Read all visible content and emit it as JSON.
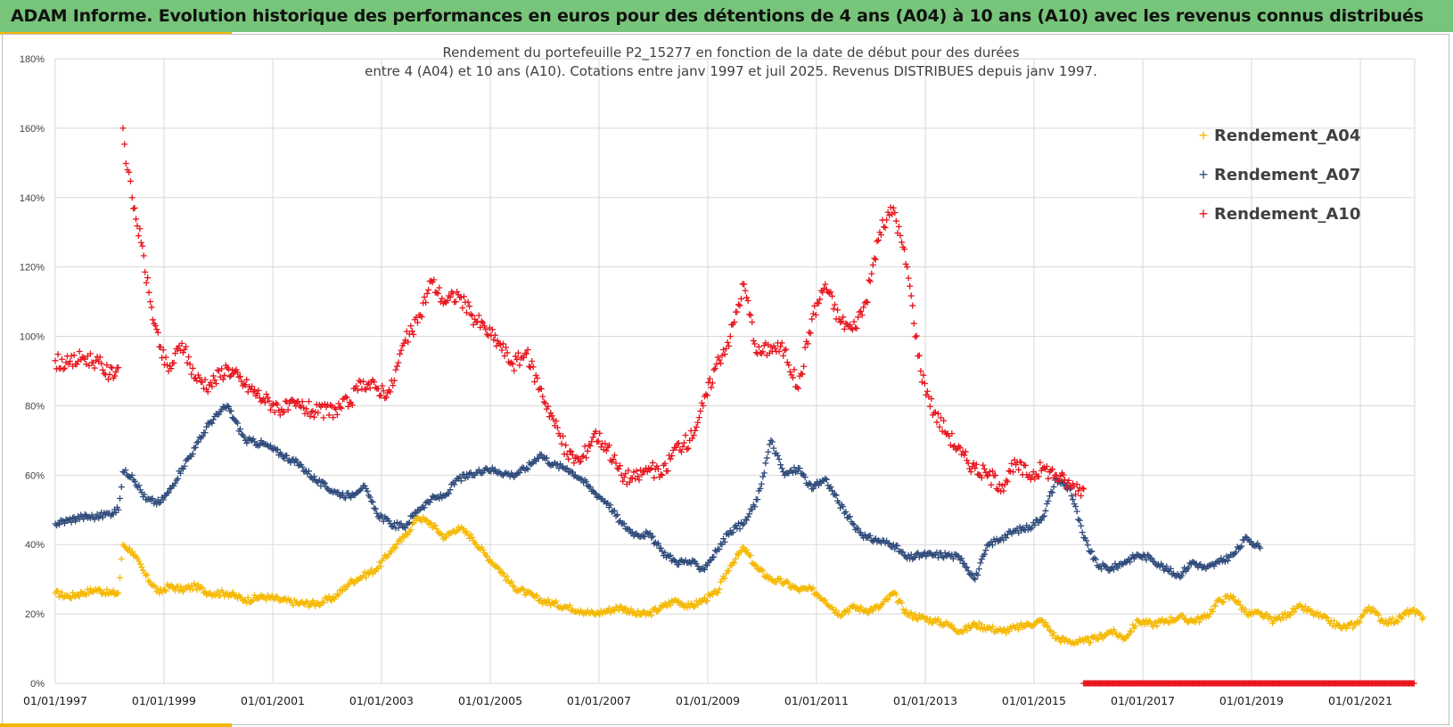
{
  "banner": {
    "title": "ADAM Informe. Evolution historique des performances en euros pour des détentions de 4 ans (A04) à 10 ans (A10) avec les revenus connus distribués"
  },
  "colors": {
    "banner_bg": "#77c57a",
    "accent": "#f2b705"
  },
  "chart_data": {
    "type": "scatter",
    "marker": "plus",
    "title_lines": [
      "Rendement du portefeuille P2_15277 en fonction de la date de début pour des durées",
      "entre 4 (A04) et 10 ans (A10). Cotations entre janv 1997 et juil 2025. Revenus DISTRIBUES depuis janv 1997."
    ],
    "x_range": [
      "1997-01-01",
      "2022-01-01"
    ],
    "y_range": [
      0,
      1.8
    ],
    "y_ticks": [
      "0%",
      "20%",
      "40%",
      "60%",
      "80%",
      "100%",
      "120%",
      "140%",
      "160%",
      "180%"
    ],
    "x_ticks": [
      "01/01/1997",
      "01/01/1999",
      "01/01/2001",
      "01/01/2003",
      "01/01/2005",
      "01/01/2007",
      "01/01/2009",
      "01/01/2011",
      "01/01/2013",
      "01/01/2015",
      "01/01/2017",
      "01/01/2019",
      "01/01/2021"
    ],
    "grid": true,
    "legend_position": "top-right",
    "series": [
      {
        "name": "Rendement_A04",
        "color": "#f5b800",
        "points": [
          [
            "1997-01-01",
            0.26
          ],
          [
            "1997-04-01",
            0.25
          ],
          [
            "1997-07-01",
            0.26
          ],
          [
            "1997-10-01",
            0.27
          ],
          [
            "1998-01-01",
            0.26
          ],
          [
            "1998-03-01",
            0.26
          ],
          [
            "1998-04-01",
            0.4
          ],
          [
            "1998-06-01",
            0.38
          ],
          [
            "1998-09-01",
            0.31
          ],
          [
            "1998-12-01",
            0.26
          ],
          [
            "1999-02-01",
            0.28
          ],
          [
            "1999-05-01",
            0.27
          ],
          [
            "1999-08-01",
            0.28
          ],
          [
            "1999-11-01",
            0.26
          ],
          [
            "2000-03-01",
            0.26
          ],
          [
            "2000-07-01",
            0.24
          ],
          [
            "2000-11-01",
            0.25
          ],
          [
            "2001-03-01",
            0.24
          ],
          [
            "2001-07-01",
            0.23
          ],
          [
            "2001-11-01",
            0.23
          ],
          [
            "2002-03-01",
            0.25
          ],
          [
            "2002-06-01",
            0.29
          ],
          [
            "2002-09-01",
            0.31
          ],
          [
            "2002-12-01",
            0.33
          ],
          [
            "2003-03-01",
            0.38
          ],
          [
            "2003-06-01",
            0.42
          ],
          [
            "2003-09-01",
            0.48
          ],
          [
            "2003-12-01",
            0.46
          ],
          [
            "2004-03-01",
            0.42
          ],
          [
            "2004-06-01",
            0.45
          ],
          [
            "2004-09-01",
            0.42
          ],
          [
            "2004-12-01",
            0.37
          ],
          [
            "2005-03-01",
            0.33
          ],
          [
            "2005-06-01",
            0.28
          ],
          [
            "2005-09-01",
            0.26
          ],
          [
            "2005-12-01",
            0.24
          ],
          [
            "2006-03-01",
            0.23
          ],
          [
            "2006-06-01",
            0.22
          ],
          [
            "2006-09-01",
            0.21
          ],
          [
            "2006-12-01",
            0.2
          ],
          [
            "2007-03-01",
            0.21
          ],
          [
            "2007-06-01",
            0.22
          ],
          [
            "2007-09-01",
            0.2
          ],
          [
            "2007-12-01",
            0.2
          ],
          [
            "2008-03-01",
            0.22
          ],
          [
            "2008-06-01",
            0.24
          ],
          [
            "2008-09-01",
            0.22
          ],
          [
            "2008-12-01",
            0.24
          ],
          [
            "2009-03-01",
            0.26
          ],
          [
            "2009-06-01",
            0.34
          ],
          [
            "2009-09-01",
            0.39
          ],
          [
            "2009-12-01",
            0.33
          ],
          [
            "2010-03-01",
            0.3
          ],
          [
            "2010-06-01",
            0.29
          ],
          [
            "2010-09-01",
            0.27
          ],
          [
            "2010-12-01",
            0.27
          ],
          [
            "2011-03-01",
            0.24
          ],
          [
            "2011-06-01",
            0.2
          ],
          [
            "2011-09-01",
            0.22
          ],
          [
            "2011-12-01",
            0.21
          ],
          [
            "2012-03-01",
            0.22
          ],
          [
            "2012-06-01",
            0.26
          ],
          [
            "2012-09-01",
            0.2
          ],
          [
            "2012-12-01",
            0.19
          ],
          [
            "2013-03-01",
            0.18
          ],
          [
            "2013-06-01",
            0.17
          ],
          [
            "2013-09-01",
            0.15
          ],
          [
            "2013-12-01",
            0.17
          ],
          [
            "2014-03-01",
            0.16
          ],
          [
            "2014-06-01",
            0.15
          ],
          [
            "2014-09-01",
            0.16
          ],
          [
            "2014-12-01",
            0.17
          ],
          [
            "2015-03-01",
            0.18
          ],
          [
            "2015-06-01",
            0.13
          ],
          [
            "2015-09-01",
            0.12
          ],
          [
            "2015-12-01",
            0.12
          ],
          [
            "2016-03-01",
            0.13
          ],
          [
            "2016-06-01",
            0.15
          ],
          [
            "2016-09-01",
            0.13
          ],
          [
            "2016-12-01",
            0.18
          ],
          [
            "2017-03-01",
            0.17
          ],
          [
            "2017-06-01",
            0.18
          ],
          [
            "2017-09-01",
            0.19
          ],
          [
            "2017-12-01",
            0.18
          ],
          [
            "2018-03-01",
            0.19
          ],
          [
            "2018-06-01",
            0.24
          ],
          [
            "2018-09-01",
            0.25
          ],
          [
            "2018-12-01",
            0.2
          ],
          [
            "2019-03-01",
            0.2
          ],
          [
            "2019-06-01",
            0.18
          ],
          [
            "2019-09-01",
            0.2
          ],
          [
            "2019-12-01",
            0.22
          ],
          [
            "2020-03-01",
            0.2
          ],
          [
            "2020-06-01",
            0.18
          ],
          [
            "2020-09-01",
            0.16
          ],
          [
            "2020-12-01",
            0.17
          ],
          [
            "2021-03-01",
            0.22
          ],
          [
            "2021-06-01",
            0.18
          ],
          [
            "2021-09-01",
            0.18
          ],
          [
            "2021-12-01",
            0.21
          ],
          [
            "2022-03-01",
            0.19
          ]
        ]
      },
      {
        "name": "Rendement_A07",
        "color": "#2e4a7a",
        "points": [
          [
            "1997-01-01",
            0.46
          ],
          [
            "1997-04-01",
            0.47
          ],
          [
            "1997-07-01",
            0.48
          ],
          [
            "1997-10-01",
            0.48
          ],
          [
            "1998-01-01",
            0.49
          ],
          [
            "1998-03-01",
            0.5
          ],
          [
            "1998-04-01",
            0.61
          ],
          [
            "1998-06-01",
            0.6
          ],
          [
            "1998-09-01",
            0.53
          ],
          [
            "1998-12-01",
            0.52
          ],
          [
            "1999-02-01",
            0.55
          ],
          [
            "1999-05-01",
            0.62
          ],
          [
            "1999-08-01",
            0.68
          ],
          [
            "1999-11-01",
            0.75
          ],
          [
            "2000-03-01",
            0.8
          ],
          [
            "2000-07-01",
            0.7
          ],
          [
            "2000-11-01",
            0.69
          ],
          [
            "2001-03-01",
            0.66
          ],
          [
            "2001-07-01",
            0.63
          ],
          [
            "2001-11-01",
            0.58
          ],
          [
            "2002-03-01",
            0.55
          ],
          [
            "2002-06-01",
            0.54
          ],
          [
            "2002-09-01",
            0.57
          ],
          [
            "2002-12-01",
            0.49
          ],
          [
            "2003-03-01",
            0.46
          ],
          [
            "2003-06-01",
            0.45
          ],
          [
            "2003-09-01",
            0.5
          ],
          [
            "2003-12-01",
            0.53
          ],
          [
            "2004-03-01",
            0.54
          ],
          [
            "2004-06-01",
            0.59
          ],
          [
            "2004-09-01",
            0.6
          ],
          [
            "2004-12-01",
            0.62
          ],
          [
            "2005-03-01",
            0.61
          ],
          [
            "2005-06-01",
            0.6
          ],
          [
            "2005-09-01",
            0.62
          ],
          [
            "2005-12-01",
            0.66
          ],
          [
            "2006-03-01",
            0.63
          ],
          [
            "2006-06-01",
            0.62
          ],
          [
            "2006-09-01",
            0.59
          ],
          [
            "2006-12-01",
            0.55
          ],
          [
            "2007-03-01",
            0.52
          ],
          [
            "2007-06-01",
            0.46
          ],
          [
            "2007-09-01",
            0.43
          ],
          [
            "2007-12-01",
            0.43
          ],
          [
            "2008-03-01",
            0.38
          ],
          [
            "2008-06-01",
            0.35
          ],
          [
            "2008-09-01",
            0.35
          ],
          [
            "2008-12-01",
            0.33
          ],
          [
            "2009-03-01",
            0.38
          ],
          [
            "2009-06-01",
            0.44
          ],
          [
            "2009-09-01",
            0.46
          ],
          [
            "2009-12-01",
            0.53
          ],
          [
            "2010-03-01",
            0.7
          ],
          [
            "2010-06-01",
            0.6
          ],
          [
            "2010-09-01",
            0.62
          ],
          [
            "2010-12-01",
            0.56
          ],
          [
            "2011-03-01",
            0.59
          ],
          [
            "2011-06-01",
            0.52
          ],
          [
            "2011-09-01",
            0.46
          ],
          [
            "2011-12-01",
            0.42
          ],
          [
            "2012-03-01",
            0.41
          ],
          [
            "2012-06-01",
            0.4
          ],
          [
            "2012-09-01",
            0.36
          ],
          [
            "2012-12-01",
            0.37
          ],
          [
            "2013-03-01",
            0.37
          ],
          [
            "2013-06-01",
            0.37
          ],
          [
            "2013-09-01",
            0.36
          ],
          [
            "2013-12-01",
            0.3
          ],
          [
            "2014-03-01",
            0.4
          ],
          [
            "2014-06-01",
            0.42
          ],
          [
            "2014-09-01",
            0.44
          ],
          [
            "2014-12-01",
            0.45
          ],
          [
            "2015-03-01",
            0.48
          ],
          [
            "2015-06-01",
            0.59
          ],
          [
            "2015-09-01",
            0.56
          ],
          [
            "2015-12-01",
            0.42
          ],
          [
            "2016-03-01",
            0.34
          ],
          [
            "2016-06-01",
            0.33
          ],
          [
            "2016-09-01",
            0.35
          ],
          [
            "2016-12-01",
            0.37
          ],
          [
            "2017-03-01",
            0.36
          ],
          [
            "2017-06-01",
            0.33
          ],
          [
            "2017-09-01",
            0.31
          ],
          [
            "2017-12-01",
            0.35
          ],
          [
            "2018-03-01",
            0.33
          ],
          [
            "2018-06-01",
            0.35
          ],
          [
            "2018-09-01",
            0.37
          ],
          [
            "2018-12-01",
            0.42
          ],
          [
            "2019-03-01",
            0.39
          ]
        ]
      },
      {
        "name": "Rendement_A10",
        "color": "#e8141c",
        "points": [
          [
            "1997-01-01",
            0.93
          ],
          [
            "1997-04-01",
            0.92
          ],
          [
            "1997-07-01",
            0.94
          ],
          [
            "1997-10-01",
            0.93
          ],
          [
            "1998-01-01",
            0.89
          ],
          [
            "1998-03-01",
            0.91
          ],
          [
            "1998-04-01",
            1.6
          ],
          [
            "1998-05-01",
            1.48
          ],
          [
            "1998-06-01",
            1.4
          ],
          [
            "1998-08-01",
            1.27
          ],
          [
            "1998-10-01",
            1.1
          ],
          [
            "1998-12-01",
            0.97
          ],
          [
            "1999-02-01",
            0.9
          ],
          [
            "1999-05-01",
            0.98
          ],
          [
            "1999-08-01",
            0.88
          ],
          [
            "1999-11-01",
            0.86
          ],
          [
            "2000-03-01",
            0.91
          ],
          [
            "2000-07-01",
            0.86
          ],
          [
            "2000-11-01",
            0.82
          ],
          [
            "2001-03-01",
            0.79
          ],
          [
            "2001-07-01",
            0.8
          ],
          [
            "2001-11-01",
            0.78
          ],
          [
            "2002-03-01",
            0.79
          ],
          [
            "2002-06-01",
            0.81
          ],
          [
            "2002-09-01",
            0.87
          ],
          [
            "2002-12-01",
            0.85
          ],
          [
            "2003-03-01",
            0.84
          ],
          [
            "2003-06-01",
            0.98
          ],
          [
            "2003-09-01",
            1.04
          ],
          [
            "2003-12-01",
            1.16
          ],
          [
            "2004-03-01",
            1.1
          ],
          [
            "2004-06-01",
            1.12
          ],
          [
            "2004-09-01",
            1.06
          ],
          [
            "2004-12-01",
            1.02
          ],
          [
            "2005-03-01",
            0.98
          ],
          [
            "2005-06-01",
            0.92
          ],
          [
            "2005-09-01",
            0.95
          ],
          [
            "2005-12-01",
            0.85
          ],
          [
            "2006-03-01",
            0.76
          ],
          [
            "2006-06-01",
            0.66
          ],
          [
            "2006-09-01",
            0.64
          ],
          [
            "2006-12-01",
            0.72
          ],
          [
            "2007-03-01",
            0.68
          ],
          [
            "2007-06-01",
            0.6
          ],
          [
            "2007-09-01",
            0.59
          ],
          [
            "2007-12-01",
            0.62
          ],
          [
            "2008-03-01",
            0.6
          ],
          [
            "2008-06-01",
            0.68
          ],
          [
            "2008-09-01",
            0.7
          ],
          [
            "2008-12-01",
            0.8
          ],
          [
            "2009-03-01",
            0.92
          ],
          [
            "2009-06-01",
            1.0
          ],
          [
            "2009-09-01",
            1.15
          ],
          [
            "2009-12-01",
            0.95
          ],
          [
            "2010-03-01",
            0.97
          ],
          [
            "2010-06-01",
            0.96
          ],
          [
            "2010-09-01",
            0.85
          ],
          [
            "2010-12-01",
            1.05
          ],
          [
            "2011-03-01",
            1.15
          ],
          [
            "2011-06-01",
            1.05
          ],
          [
            "2011-09-01",
            1.02
          ],
          [
            "2011-12-01",
            1.1
          ],
          [
            "2012-03-01",
            1.3
          ],
          [
            "2012-06-01",
            1.37
          ],
          [
            "2012-09-01",
            1.2
          ],
          [
            "2012-12-01",
            0.9
          ],
          [
            "2013-03-01",
            0.78
          ],
          [
            "2013-06-01",
            0.72
          ],
          [
            "2013-09-01",
            0.66
          ],
          [
            "2013-12-01",
            0.62
          ],
          [
            "2014-03-01",
            0.6
          ],
          [
            "2014-06-01",
            0.57
          ],
          [
            "2014-09-01",
            0.63
          ],
          [
            "2014-12-01",
            0.6
          ],
          [
            "2015-03-01",
            0.62
          ],
          [
            "2015-06-01",
            0.6
          ],
          [
            "2015-09-01",
            0.57
          ],
          [
            "2015-12-01",
            0.56
          ]
        ],
        "zero_run": [
          "2015-12-01",
          "2022-01-01",
          0
        ]
      }
    ]
  }
}
